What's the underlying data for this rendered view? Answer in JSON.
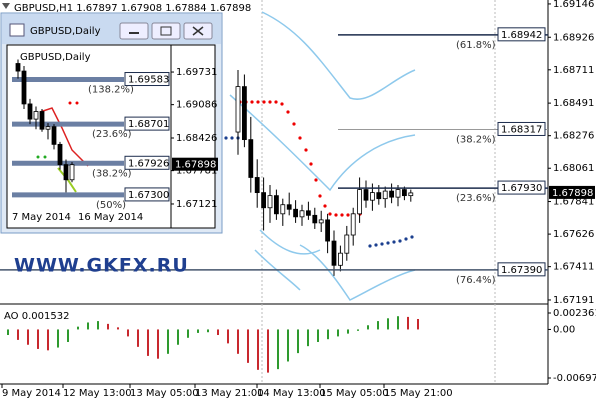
{
  "chart_data": [
    {
      "type": "candlestick",
      "title": "GBPUSD,H1  1.67897 1.67908 1.67884 1.67898",
      "open": [
        1.683,
        1.686,
        1.6825,
        1.68,
        1.679,
        1.678,
        1.6788,
        1.6776,
        1.6782,
        1.6779,
        1.6774,
        1.6778,
        1.6775,
        1.677,
        1.6772,
        1.6758,
        1.6742,
        1.675,
        1.6762,
        1.6776,
        1.6792,
        1.6785,
        1.679,
        1.6786,
        1.6791,
        1.6787,
        1.6792,
        1.6788
      ],
      "high": [
        1.6871,
        1.6868,
        1.684,
        1.6812,
        1.68,
        1.6795,
        1.6792,
        1.6786,
        1.679,
        1.6785,
        1.6782,
        1.6784,
        1.678,
        1.6778,
        1.6776,
        1.6765,
        1.6755,
        1.6768,
        1.678,
        1.68,
        1.6798,
        1.6796,
        1.6795,
        1.6794,
        1.6796,
        1.6795,
        1.6794,
        1.6792
      ],
      "low": [
        1.6815,
        1.682,
        1.679,
        1.678,
        1.6765,
        1.677,
        1.6772,
        1.6768,
        1.6775,
        1.677,
        1.6768,
        1.6772,
        1.6766,
        1.6764,
        1.675,
        1.6735,
        1.6738,
        1.6745,
        1.6755,
        1.677,
        1.678,
        1.6778,
        1.6782,
        1.678,
        1.6783,
        1.6781,
        1.6785,
        1.6784
      ],
      "close": [
        1.686,
        1.6825,
        1.68,
        1.679,
        1.678,
        1.6788,
        1.6776,
        1.6782,
        1.6779,
        1.6774,
        1.6778,
        1.6775,
        1.677,
        1.6772,
        1.6758,
        1.6742,
        1.675,
        1.6762,
        1.6776,
        1.6792,
        1.6785,
        1.679,
        1.6786,
        1.6791,
        1.6787,
        1.6792,
        1.6788,
        1.67898
      ],
      "ylim": [
        1.67171,
        1.69172
      ],
      "yticks": [
        1.69146,
        1.68926,
        1.68711,
        1.68491,
        1.68276,
        1.68061,
        1.67841,
        1.67626,
        1.67411,
        1.67191
      ],
      "x_labels": [
        "9 May 2014",
        "12 May 13:00",
        "13 May 05:00",
        "13 May 21:00",
        "14 May 13:00",
        "15 May 05:00",
        "15 May 21:00"
      ],
      "fib_levels": [
        {
          "price": 1.68942,
          "ratio": "(61.8%)"
        },
        {
          "price": 1.68317,
          "ratio": "(38.2%)"
        },
        {
          "price": {
            "value": 1.6793,
            "label": "1.67930"
          },
          "ratio": "(23.6%)"
        },
        {
          "price": {
            "value": 1.6739,
            "label": "1.67390"
          },
          "ratio": "(76.4%)"
        }
      ],
      "last_price": 1.67898,
      "watermark": "WWW.GKFX.RU"
    },
    {
      "type": "bar",
      "title": "AO 0.001532",
      "values": [
        -0.0008,
        -0.0015,
        -0.0022,
        -0.0028,
        -0.003,
        -0.0026,
        -0.0018,
        0.0004,
        0.001,
        0.0012,
        0.0008,
        0.0003,
        -0.001,
        -0.0025,
        -0.0038,
        -0.0042,
        -0.0035,
        -0.0022,
        -0.0012,
        -0.0005,
        -0.0004,
        -0.0008,
        -0.002,
        -0.0035,
        -0.0048,
        -0.0058,
        -0.0062,
        -0.0057,
        -0.0046,
        -0.0034,
        -0.0024,
        -0.0018,
        -0.0014,
        -0.001,
        -0.0006,
        -0.0002,
        0.0006,
        0.0012,
        0.0016,
        0.0019,
        0.0018,
        0.0015
      ],
      "ylim": [
        -0.006973,
        0.002361
      ],
      "yticks": [
        0.002361,
        {
          "value": 0,
          "label": "0.00"
        },
        -0.006973
      ]
    },
    {
      "type": "candlestick",
      "window_title": "GBPUSD,Daily",
      "title": "GBPUSD,Daily",
      "open": [
        1.699,
        1.6975,
        1.691,
        1.688,
        1.6895,
        1.686,
        1.6865,
        1.683,
        1.679,
        1.676
      ],
      "high": [
        1.6998,
        1.6985,
        1.692,
        1.6905,
        1.69,
        1.6872,
        1.687,
        1.6835,
        1.68,
        1.6795
      ],
      "low": [
        1.696,
        1.69,
        1.687,
        1.686,
        1.6855,
        1.684,
        1.682,
        1.678,
        1.6735,
        1.6755
      ],
      "close": [
        1.6975,
        1.691,
        1.688,
        1.6895,
        1.686,
        1.6865,
        1.683,
        1.679,
        1.676,
        1.67898
      ],
      "ylim": [
        1.66804,
        1.70167
      ],
      "yticks": [
        1.69731,
        1.69086,
        1.68426,
        1.67781,
        1.67121
      ],
      "x_labels": [
        "7 May 2014",
        "16 May 2014"
      ],
      "fib_levels": [
        {
          "price": 1.69583,
          "ratio": "(138.2%)"
        },
        {
          "price": 1.68701,
          "ratio": "(23.6%)"
        },
        {
          "price": 1.67926,
          "ratio": "(38.2%)"
        },
        {
          "price": {
            "value": 1.673,
            "label": "1.67300"
          },
          "ratio": "(50%)"
        }
      ],
      "last_price": 1.67898
    }
  ]
}
